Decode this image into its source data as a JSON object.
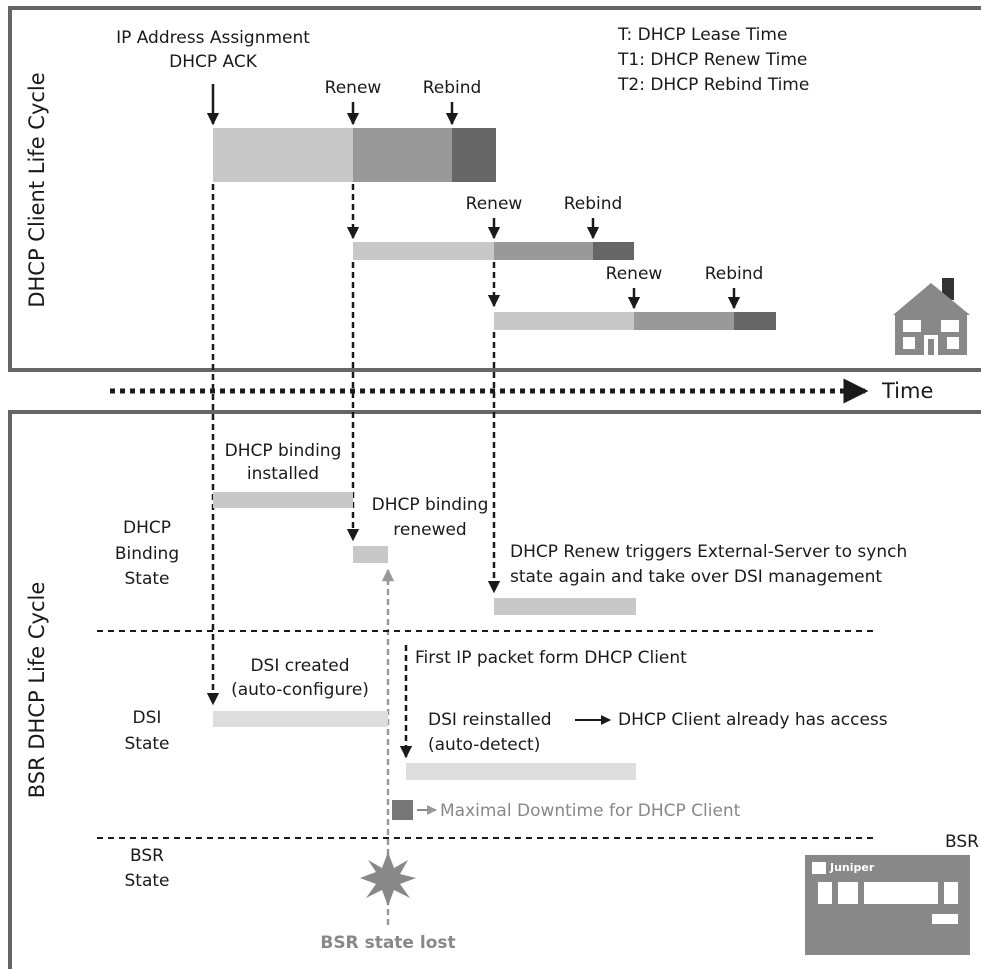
{
  "client_panel": {
    "title": "DHCP Client Life Cycle",
    "assignment": [
      "IP Address Assignment",
      "DHCP ACK"
    ],
    "legend": [
      "T:   DHCP Lease Time",
      "T1: DHCP Renew Time",
      "T2: DHCP Rebind Time"
    ],
    "leases": [
      {
        "renew": "Renew",
        "rebind": "Rebind"
      },
      {
        "renew": "Renew",
        "rebind": "Rebind"
      },
      {
        "renew": "Renew",
        "rebind": "Rebind"
      }
    ]
  },
  "time_axis": "Time",
  "bsr_panel": {
    "title": "BSR DHCP Life Cycle",
    "rows": [
      [
        "DHCP",
        "Binding",
        "State"
      ],
      [
        "DSI",
        "State"
      ],
      [
        "BSR",
        "State"
      ]
    ],
    "binding_installed": [
      "DHCP binding",
      "installed"
    ],
    "binding_renewed": [
      "DHCP binding",
      "renewed"
    ],
    "renew_triggers": [
      "DHCP Renew triggers External-Server to synch",
      "state again and take over DSI management"
    ],
    "first_packet": "First IP packet form DHCP Client",
    "dsi_created": [
      "DSI created",
      "(auto-configure)"
    ],
    "dsi_reinstalled": [
      "DSI reinstalled",
      "DHCP Client already has access",
      "(auto-detect)"
    ],
    "downtime": "Maximal Downtime for DHCP Client",
    "state_lost": "BSR state lost",
    "device_label": "BSR",
    "device_brand": "Juniper"
  }
}
